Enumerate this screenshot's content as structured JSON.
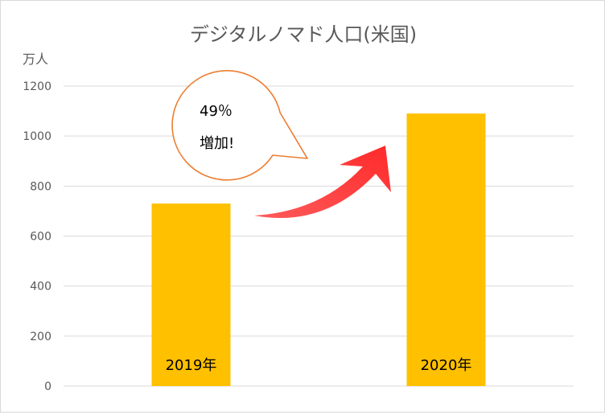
{
  "chart_data": {
    "type": "bar",
    "title": "デジタルノマド人口(米国)",
    "ylabel": "万人",
    "xlabel": "",
    "categories": [
      "2019年",
      "2020年"
    ],
    "values": [
      730,
      1090
    ],
    "ylim": [
      0,
      1200
    ],
    "yticks": [
      0,
      200,
      400,
      600,
      800,
      1000,
      1200
    ],
    "grid": true,
    "bar_color": "#ffc000",
    "annotation": {
      "line1": "49％",
      "line2": "増加!",
      "bubble_border_color": "#ed7d31",
      "arrow_color": "#ff3b3b"
    }
  }
}
